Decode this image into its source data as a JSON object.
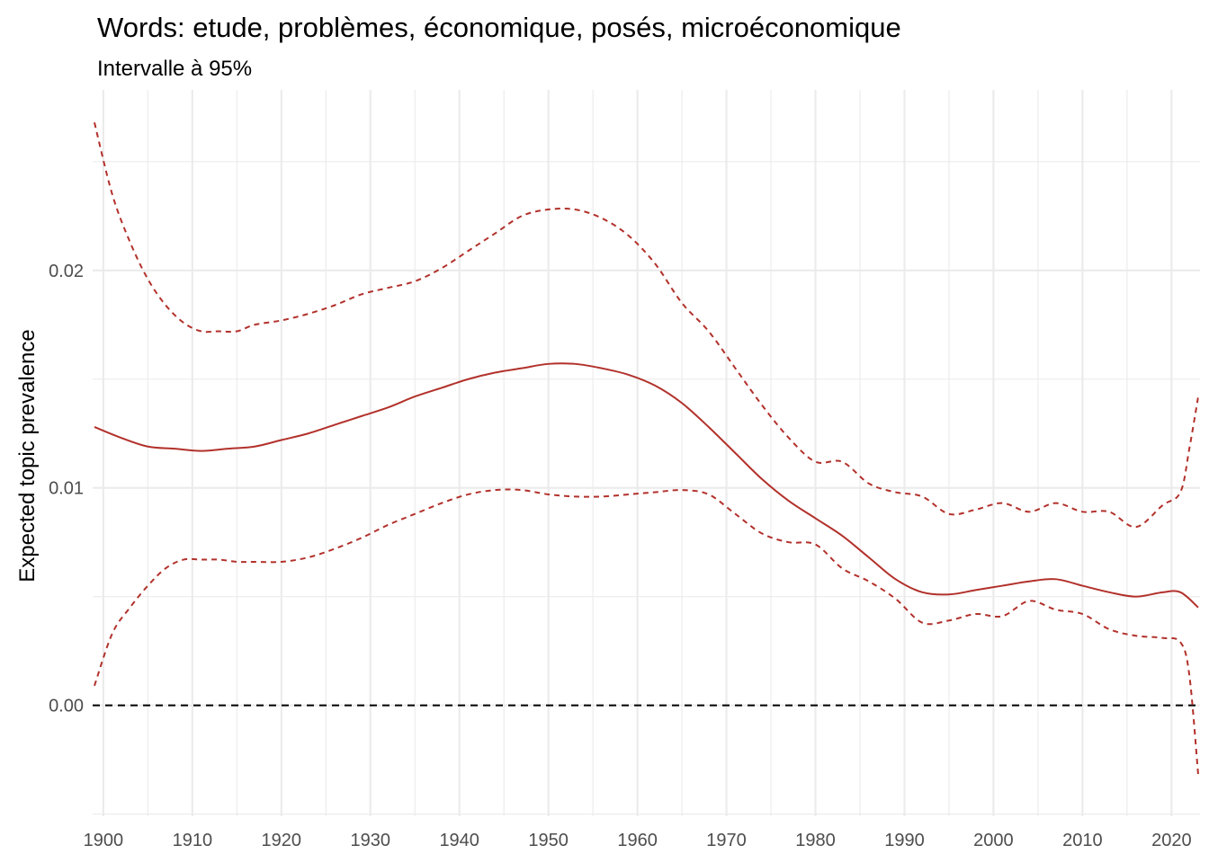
{
  "chart_data": {
    "type": "line",
    "title": "Words: etude, problèmes, économique, posés, microéconomique",
    "subtitle": "Intervalle à 95%",
    "xlabel": "",
    "ylabel": "Expected topic prevalence",
    "xlim": [
      1898.8,
      2023.2
    ],
    "ylim": [
      -0.0051,
      0.0283
    ],
    "x_ticks": [
      1900,
      1910,
      1920,
      1930,
      1940,
      1950,
      1960,
      1970,
      1980,
      1990,
      2000,
      2010,
      2020
    ],
    "x_tick_labels": [
      "1900",
      "1910",
      "1920",
      "1930",
      "1940",
      "1950",
      "1960",
      "1970",
      "1980",
      "1990",
      "2000",
      "2010",
      "2020"
    ],
    "y_ticks": [
      0.0,
      0.01,
      0.02
    ],
    "y_tick_labels": [
      "0.00",
      "0.01",
      "0.02"
    ],
    "grid": true,
    "reference_line": {
      "y": 0,
      "style": "dashed",
      "color": "#000000"
    },
    "colors": {
      "line": "#b2312b",
      "grid": "#ebebeb",
      "tick_text": "#4d4d4d"
    },
    "series": [
      {
        "role": "estimate",
        "style": "solid",
        "x": [
          1899,
          1902,
          1905,
          1908,
          1911,
          1914,
          1917,
          1920,
          1923,
          1926,
          1929,
          1932,
          1935,
          1938,
          1941,
          1944,
          1947,
          1950,
          1953,
          1956,
          1959,
          1962,
          1965,
          1968,
          1971,
          1974,
          1977,
          1980,
          1983,
          1986,
          1989,
          1992,
          1995,
          1998,
          2001,
          2004,
          2007,
          2010,
          2013,
          2016,
          2019,
          2021,
          2023
        ],
        "values": [
          0.0128,
          0.0123,
          0.0119,
          0.0118,
          0.0117,
          0.0118,
          0.0119,
          0.0122,
          0.0125,
          0.0129,
          0.0133,
          0.0137,
          0.0142,
          0.0146,
          0.015,
          0.0153,
          0.0155,
          0.0157,
          0.0157,
          0.0155,
          0.0152,
          0.0147,
          0.0139,
          0.0128,
          0.0116,
          0.0104,
          0.0094,
          0.0086,
          0.0078,
          0.0068,
          0.0058,
          0.0052,
          0.0051,
          0.0053,
          0.0055,
          0.0057,
          0.0058,
          0.0055,
          0.0052,
          0.005,
          0.0052,
          0.0052,
          0.0045
        ]
      },
      {
        "role": "upper-95",
        "style": "dashed",
        "x": [
          1899,
          1901,
          1903,
          1905,
          1907,
          1909,
          1911,
          1913,
          1915,
          1917,
          1920,
          1923,
          1926,
          1929,
          1932,
          1935,
          1938,
          1941,
          1944,
          1947,
          1950,
          1953,
          1956,
          1959,
          1962,
          1965,
          1968,
          1971,
          1974,
          1977,
          1980,
          1983,
          1986,
          1989,
          1992,
          1995,
          1998,
          2001,
          2004,
          2007,
          2010,
          2013,
          2016,
          2019,
          2021,
          2022,
          2023
        ],
        "values": [
          0.0268,
          0.0235,
          0.0213,
          0.0196,
          0.0184,
          0.0176,
          0.0172,
          0.0172,
          0.0172,
          0.0175,
          0.0177,
          0.018,
          0.0184,
          0.0189,
          0.0192,
          0.0195,
          0.0201,
          0.0209,
          0.0217,
          0.0225,
          0.0228,
          0.0228,
          0.0224,
          0.0216,
          0.0203,
          0.0185,
          0.0172,
          0.0155,
          0.0138,
          0.0123,
          0.0112,
          0.0112,
          0.0102,
          0.0098,
          0.0096,
          0.0088,
          0.009,
          0.0093,
          0.0089,
          0.0093,
          0.0089,
          0.0089,
          0.0082,
          0.0092,
          0.0098,
          0.0118,
          0.0142
        ]
      },
      {
        "role": "lower-95",
        "style": "dashed",
        "x": [
          1899,
          1901,
          1903,
          1905,
          1907,
          1909,
          1911,
          1913,
          1915,
          1917,
          1920,
          1923,
          1926,
          1929,
          1932,
          1935,
          1938,
          1941,
          1944,
          1947,
          1950,
          1953,
          1956,
          1959,
          1962,
          1965,
          1968,
          1971,
          1974,
          1977,
          1980,
          1983,
          1986,
          1989,
          1992,
          1995,
          1998,
          2001,
          2004,
          2007,
          2010,
          2013,
          2016,
          2019,
          2021,
          2022,
          2023
        ],
        "values": [
          0.0009,
          0.0033,
          0.0045,
          0.0055,
          0.0063,
          0.0067,
          0.0067,
          0.0067,
          0.0066,
          0.0066,
          0.0066,
          0.0068,
          0.0072,
          0.0077,
          0.0083,
          0.0088,
          0.0093,
          0.0097,
          0.0099,
          0.0099,
          0.0097,
          0.0096,
          0.0096,
          0.0097,
          0.0098,
          0.0099,
          0.0097,
          0.0088,
          0.0079,
          0.0075,
          0.0074,
          0.0063,
          0.0057,
          0.0049,
          0.0038,
          0.0039,
          0.0042,
          0.0041,
          0.0048,
          0.0044,
          0.0042,
          0.0035,
          0.0032,
          0.0031,
          0.0029,
          0.0014,
          -0.0032
        ]
      }
    ]
  }
}
